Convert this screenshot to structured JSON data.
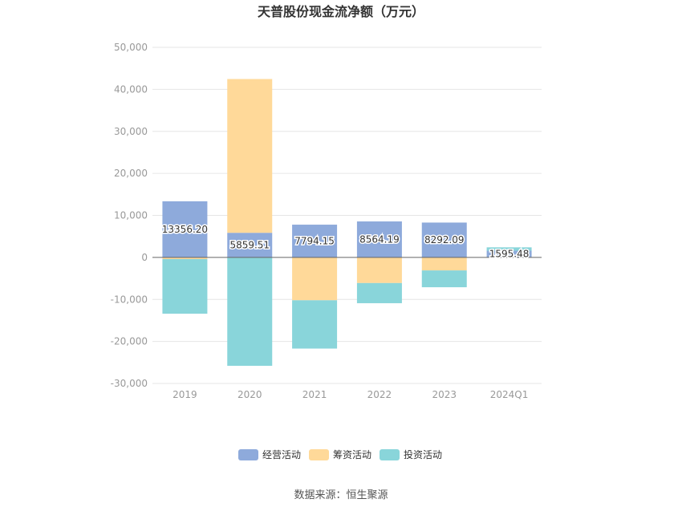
{
  "chart_data": {
    "type": "bar",
    "stacked": true,
    "title": "天普股份现金流净额（万元）",
    "xlabel": "",
    "ylabel": "",
    "categories": [
      "2019",
      "2020",
      "2021",
      "2022",
      "2023",
      "2024Q1"
    ],
    "ylim": [
      -30000,
      50000
    ],
    "yticks": [
      50000,
      40000,
      30000,
      20000,
      10000,
      0,
      -10000,
      -20000,
      -30000
    ],
    "ytick_labels": [
      "50,000",
      "40,000",
      "30,000",
      "20,000",
      "10,000",
      "0",
      "-10,000",
      "-20,000",
      "-30,000"
    ],
    "grid": true,
    "legend_position": "bottom",
    "series": [
      {
        "name": "经营活动",
        "color": "#8eaadb",
        "values": [
          13356.2,
          5859.51,
          7794.15,
          8564.19,
          8292.09,
          1595.48
        ]
      },
      {
        "name": "筹资活动",
        "color": "#ffd999",
        "values": [
          -400,
          36600,
          -10200,
          -6100,
          -3100,
          0
        ]
      },
      {
        "name": "投资活动",
        "color": "#89d5da",
        "values": [
          -13000,
          -25800,
          -11500,
          -4800,
          -4000,
          800
        ]
      }
    ],
    "data_labels": [
      "13356.20",
      "5859.51",
      "7794.15",
      "8564.19",
      "8292.09",
      "1595.48"
    ]
  },
  "source": "数据来源：恒生聚源"
}
